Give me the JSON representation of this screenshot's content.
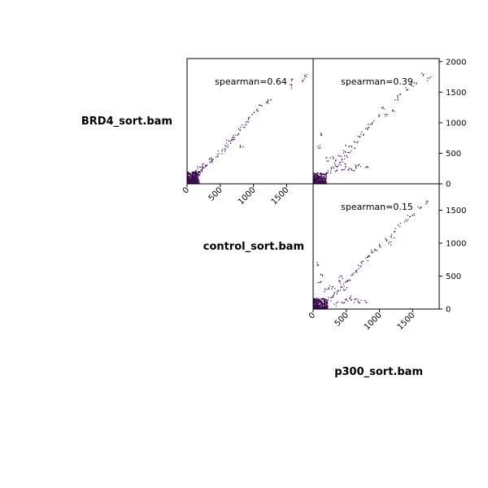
{
  "chart_data": [
    {
      "type": "scatter",
      "panel": "top-left",
      "row_sample": "BRD4_sort.bam",
      "col_sample": "control_sort.bam",
      "annotation": "spearman=0.64",
      "xlim": [
        0,
        1900
      ],
      "ylim": [
        0,
        2050
      ],
      "x_ticks": [
        0,
        500,
        1000,
        1500
      ],
      "point_color": "#3b0850",
      "points": [
        [
          40,
          30
        ],
        [
          60,
          55
        ],
        [
          80,
          70
        ],
        [
          100,
          90
        ],
        [
          120,
          110
        ],
        [
          150,
          140
        ],
        [
          180,
          170
        ],
        [
          200,
          210
        ],
        [
          230,
          240
        ],
        [
          260,
          270
        ],
        [
          300,
          300
        ],
        [
          350,
          340
        ],
        [
          400,
          390
        ],
        [
          450,
          460
        ],
        [
          500,
          520
        ],
        [
          550,
          560
        ],
        [
          600,
          620
        ],
        [
          650,
          680
        ],
        [
          700,
          760
        ],
        [
          750,
          820
        ],
        [
          800,
          900
        ],
        [
          850,
          950
        ],
        [
          900,
          1000
        ],
        [
          950,
          1080
        ],
        [
          1000,
          1150
        ],
        [
          1050,
          1200
        ],
        [
          1100,
          1260
        ],
        [
          1200,
          1330
        ],
        [
          1250,
          1370
        ],
        [
          1550,
          1600
        ],
        [
          1600,
          1700
        ],
        [
          1750,
          1700
        ],
        [
          1800,
          1780
        ],
        [
          820,
          600
        ],
        [
          700,
          740
        ],
        [
          620,
          690
        ],
        [
          350,
          420
        ],
        [
          250,
          320
        ],
        [
          180,
          260
        ],
        [
          120,
          200
        ]
      ],
      "dense_cluster": {
        "x_max": 180,
        "y_max": 200
      }
    },
    {
      "type": "scatter",
      "panel": "top-right",
      "row_sample": "BRD4_sort.bam",
      "col_sample": "p300_sort.bam",
      "annotation": "spearman=0.39",
      "xlim": [
        0,
        1900
      ],
      "ylim": [
        0,
        2050
      ],
      "y_ticks": [
        0,
        500,
        1000,
        1500,
        2000
      ],
      "point_color": "#3b0850",
      "points": [
        [
          60,
          40
        ],
        [
          100,
          80
        ],
        [
          150,
          110
        ],
        [
          200,
          150
        ],
        [
          250,
          200
        ],
        [
          300,
          260
        ],
        [
          350,
          300
        ],
        [
          400,
          330
        ],
        [
          450,
          380
        ],
        [
          500,
          450
        ],
        [
          550,
          520
        ],
        [
          600,
          600
        ],
        [
          650,
          680
        ],
        [
          700,
          760
        ],
        [
          750,
          820
        ],
        [
          800,
          900
        ],
        [
          850,
          950
        ],
        [
          900,
          1000
        ],
        [
          1000,
          1100
        ],
        [
          1050,
          1240
        ],
        [
          1100,
          1130
        ],
        [
          1200,
          1200
        ],
        [
          1250,
          1380
        ],
        [
          1300,
          1450
        ],
        [
          1400,
          1560
        ],
        [
          1500,
          1600
        ],
        [
          1550,
          1650
        ],
        [
          1650,
          1780
        ],
        [
          1750,
          1720
        ],
        [
          1450,
          -20
        ],
        [
          1500,
          -100
        ],
        [
          1550,
          -150
        ],
        [
          500,
          300
        ],
        [
          550,
          250
        ],
        [
          650,
          280
        ],
        [
          700,
          300
        ],
        [
          800,
          260
        ],
        [
          600,
          220
        ],
        [
          450,
          240
        ],
        [
          350,
          200
        ],
        [
          400,
          450
        ],
        [
          480,
          520
        ],
        [
          520,
          600
        ],
        [
          90,
          600
        ],
        [
          110,
          800
        ],
        [
          200,
          400
        ],
        [
          280,
          420
        ],
        [
          320,
          360
        ]
      ],
      "dense_cluster": {
        "x_max": 200,
        "y_max": 180
      }
    },
    {
      "type": "scatter",
      "panel": "bottom-right",
      "row_sample": "control_sort.bam",
      "col_sample": "p300_sort.bam",
      "annotation": "spearman=0.15",
      "xlim": [
        0,
        1900
      ],
      "ylim": [
        0,
        1900
      ],
      "x_ticks": [
        0,
        500,
        1000,
        1500
      ],
      "y_ticks": [
        0,
        500,
        1000,
        1500
      ],
      "point_color": "#3b0850",
      "points": [
        [
          60,
          30
        ],
        [
          100,
          60
        ],
        [
          150,
          90
        ],
        [
          200,
          120
        ],
        [
          250,
          150
        ],
        [
          300,
          200
        ],
        [
          350,
          250
        ],
        [
          400,
          300
        ],
        [
          450,
          350
        ],
        [
          500,
          400
        ],
        [
          550,
          450
        ],
        [
          600,
          520
        ],
        [
          650,
          580
        ],
        [
          700,
          640
        ],
        [
          750,
          700
        ],
        [
          800,
          760
        ],
        [
          850,
          820
        ],
        [
          900,
          880
        ],
        [
          950,
          900
        ],
        [
          1000,
          960
        ],
        [
          1100,
          1050
        ],
        [
          1200,
          1100
        ],
        [
          1250,
          1200
        ],
        [
          1400,
          1350
        ],
        [
          1450,
          1420
        ],
        [
          1500,
          1450
        ],
        [
          1600,
          1550
        ],
        [
          1700,
          1620
        ],
        [
          1480,
          -20
        ],
        [
          1500,
          -60
        ],
        [
          500,
          150
        ],
        [
          600,
          120
        ],
        [
          700,
          110
        ],
        [
          800,
          100
        ],
        [
          650,
          140
        ],
        [
          550,
          180
        ],
        [
          450,
          120
        ],
        [
          350,
          80
        ],
        [
          300,
          320
        ],
        [
          380,
          420
        ],
        [
          420,
          480
        ],
        [
          480,
          300
        ],
        [
          120,
          500
        ],
        [
          100,
          400
        ],
        [
          80,
          680
        ],
        [
          200,
          280
        ],
        [
          260,
          330
        ],
        [
          1150,
          1000
        ],
        [
          1300,
          1280
        ]
      ],
      "dense_cluster": {
        "x_max": 220,
        "y_max": 160
      }
    }
  ],
  "labels": {
    "row_top": "BRD4_sort.bam",
    "middle": "control_sort.bam",
    "bottom": "p300_sort.bam"
  }
}
